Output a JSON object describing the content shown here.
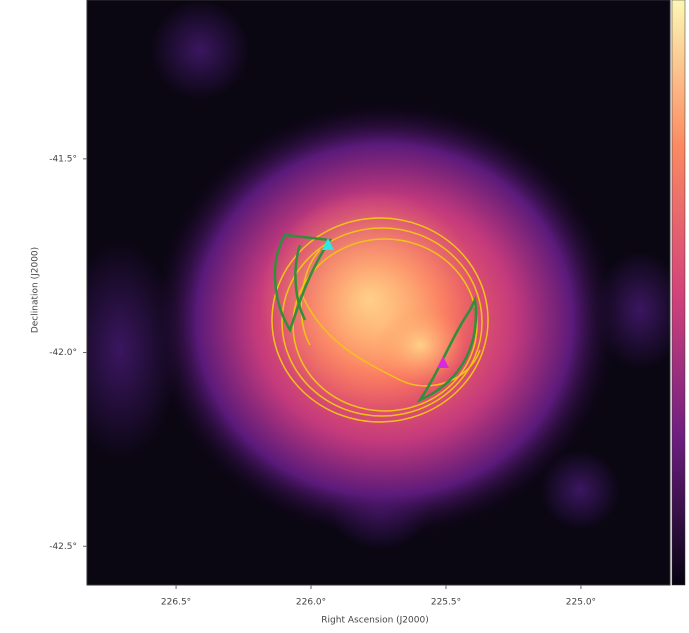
{
  "chart_data": {
    "type": "image",
    "x_label": "Right Ascension (J2000)",
    "y_label": "Declination (J2000)",
    "xlim": [
      226.83,
      224.67
    ],
    "ylim": [
      -41.09,
      -42.6
    ],
    "xticks": [
      {
        "value": 226.5,
        "label": "226.5°"
      },
      {
        "value": 226.0,
        "label": "226.0°"
      },
      {
        "value": 225.5,
        "label": "225.5°"
      },
      {
        "value": 225.0,
        "label": "225.0°"
      }
    ],
    "yticks": [
      {
        "value": -41.5,
        "label": "-41.5°"
      },
      {
        "value": -42.0,
        "label": "-42.0°"
      },
      {
        "value": -42.5,
        "label": "-42.5°"
      }
    ]
  }
}
